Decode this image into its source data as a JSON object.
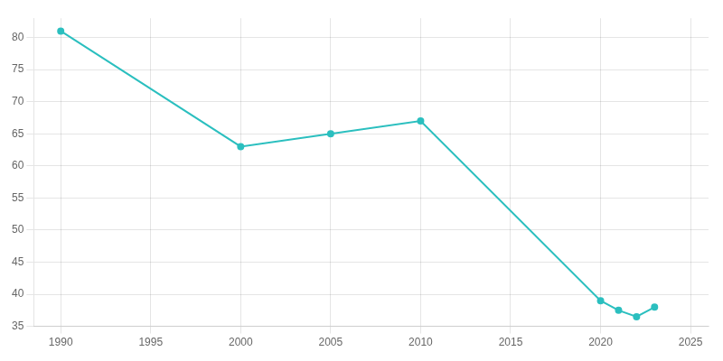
{
  "chart_data": {
    "type": "line",
    "x": [
      1990,
      2000,
      2005,
      2010,
      2020,
      2021,
      2022,
      2023
    ],
    "values": [
      81,
      63,
      65,
      67,
      39,
      37.5,
      36.5,
      38
    ],
    "color": "#2bbfbf",
    "xlim": [
      1988.5,
      2026
    ],
    "xticks": [
      1990,
      1995,
      2000,
      2005,
      2010,
      2015,
      2020,
      2025
    ],
    "ylim": [
      35,
      83
    ],
    "yticks": [
      35,
      40,
      45,
      50,
      55,
      60,
      65,
      70,
      75,
      80
    ],
    "grid": true
  }
}
